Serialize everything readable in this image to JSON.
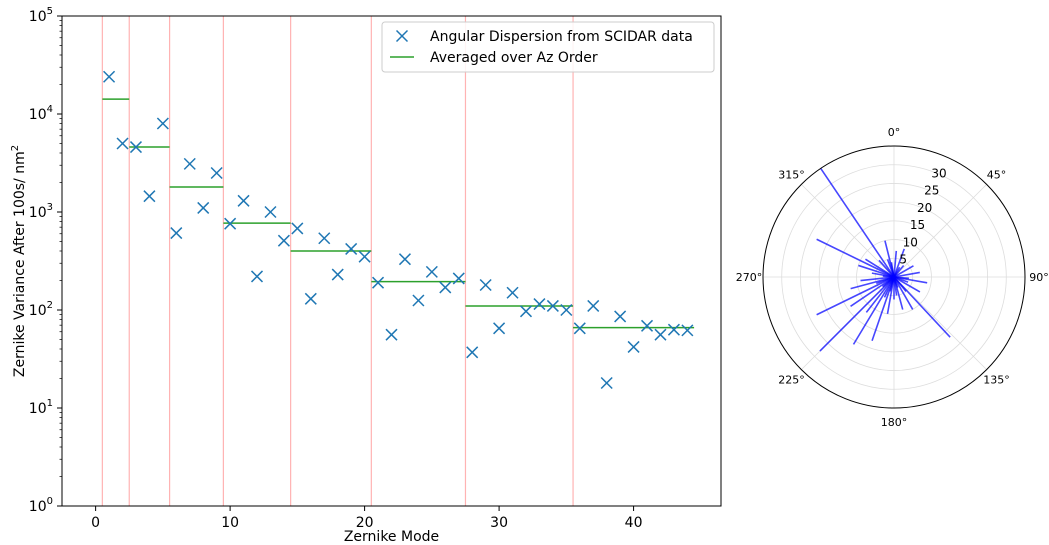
{
  "chart_data": [
    {
      "type": "scatter",
      "title": "",
      "xlabel": "Zernike Mode",
      "ylabel": "Zernike Variance After 100s/ nm",
      "ylabel_sup": "2",
      "xlim": [
        -2.5,
        46.5
      ],
      "ylim": [
        1,
        100000
      ],
      "yscale": "log",
      "xticks": [
        0,
        10,
        20,
        30,
        40
      ],
      "xtick_labels": [
        "0",
        "10",
        "20",
        "30",
        "40"
      ],
      "ytick_exponents": [
        0,
        1,
        2,
        3,
        4,
        5
      ],
      "ytick_base": "10",
      "grid": false,
      "legend_position": "top-right",
      "vlines": [
        0.5,
        2.5,
        5.5,
        9.5,
        14.5,
        20.5,
        27.5,
        35.5
      ],
      "series": [
        {
          "name": "Angular Dispersion from SCIDAR data",
          "kind": "scatter",
          "marker": "x",
          "color": "#1f77b4",
          "x": [
            1,
            2,
            3,
            4,
            5,
            6,
            7,
            8,
            9,
            10,
            11,
            12,
            13,
            14,
            15,
            16,
            17,
            18,
            19,
            20,
            21,
            22,
            23,
            24,
            25,
            26,
            27,
            28,
            29,
            30,
            31,
            32,
            33,
            34,
            35,
            36,
            37,
            38,
            39,
            40,
            41,
            42,
            43,
            44
          ],
          "y": [
            24000,
            5000,
            4600,
            1450,
            8000,
            610,
            3100,
            1100,
            2500,
            760,
            1300,
            220,
            1000,
            510,
            680,
            130,
            540,
            230,
            420,
            350,
            190,
            56,
            330,
            125,
            245,
            170,
            210,
            37,
            180,
            65,
            150,
            97,
            115,
            110,
            100,
            65,
            110,
            18,
            86,
            42,
            69,
            56,
            63,
            62
          ]
        },
        {
          "name": "Averaged over Az Order",
          "kind": "step",
          "color": "#2ca02c",
          "segments": [
            {
              "x0": 0.5,
              "x1": 2.5,
              "y": 14200
            },
            {
              "x0": 2.5,
              "x1": 5.5,
              "y": 4600
            },
            {
              "x0": 5.5,
              "x1": 9.5,
              "y": 1800
            },
            {
              "x0": 9.5,
              "x1": 14.5,
              "y": 770
            },
            {
              "x0": 14.5,
              "x1": 20.5,
              "y": 400
            },
            {
              "x0": 20.5,
              "x1": 27.5,
              "y": 195
            },
            {
              "x0": 27.5,
              "x1": 35.5,
              "y": 110
            },
            {
              "x0": 35.5,
              "x1": 44.5,
              "y": 66
            }
          ]
        }
      ]
    },
    {
      "type": "polar",
      "title": "",
      "theta_direction": "clockwise",
      "theta_zero": "top",
      "theta_tick_labels": [
        "0°",
        "45°",
        "90°",
        "135°",
        "180°",
        "225°",
        "270°",
        "315°"
      ],
      "theta_tick_degrees": [
        0,
        45,
        90,
        135,
        180,
        225,
        270,
        315
      ],
      "rmax": 35,
      "rticks": [
        5,
        10,
        15,
        20,
        25,
        30
      ],
      "rtick_labels": [
        "5",
        "10",
        "15",
        "20",
        "25",
        "30"
      ],
      "line_color": "#0000ff",
      "vectors": [
        {
          "theta": 296,
          "r": 23
        },
        {
          "theta": 326,
          "r": 35
        },
        {
          "theta": 225,
          "r": 28
        },
        {
          "theta": 244,
          "r": 23
        },
        {
          "theta": 137,
          "r": 22
        },
        {
          "theta": 211,
          "r": 21
        },
        {
          "theta": 199,
          "r": 18
        },
        {
          "theta": 346,
          "r": 10
        },
        {
          "theta": 288,
          "r": 10
        },
        {
          "theta": 302,
          "r": 9
        },
        {
          "theta": 264,
          "r": 9
        },
        {
          "theta": 255,
          "r": 12
        },
        {
          "theta": 236,
          "r": 14
        },
        {
          "theta": 218,
          "r": 12
        },
        {
          "theta": 190,
          "r": 10
        },
        {
          "theta": 180,
          "r": 6
        },
        {
          "theta": 165,
          "r": 9
        },
        {
          "theta": 150,
          "r": 10
        },
        {
          "theta": 120,
          "r": 8
        },
        {
          "theta": 100,
          "r": 9
        },
        {
          "theta": 80,
          "r": 7
        },
        {
          "theta": 60,
          "r": 6
        },
        {
          "theta": 20,
          "r": 8
        },
        {
          "theta": 5,
          "r": 7
        },
        {
          "theta": 340,
          "r": 5
        },
        {
          "theta": 318,
          "r": 6
        },
        {
          "theta": 280,
          "r": 6
        },
        {
          "theta": 250,
          "r": 5
        },
        {
          "theta": 205,
          "r": 6
        },
        {
          "theta": 172,
          "r": 5
        },
        {
          "theta": 140,
          "r": 5
        },
        {
          "theta": 110,
          "r": 4
        },
        {
          "theta": 40,
          "r": 4
        },
        {
          "theta": 95,
          "r": 4
        },
        {
          "theta": 275,
          "r": 3
        },
        {
          "theta": 230,
          "r": 4
        },
        {
          "theta": 350,
          "r": 4
        },
        {
          "theta": 30,
          "r": 3
        },
        {
          "theta": 160,
          "r": 3
        },
        {
          "theta": 195,
          "r": 4
        }
      ]
    }
  ]
}
